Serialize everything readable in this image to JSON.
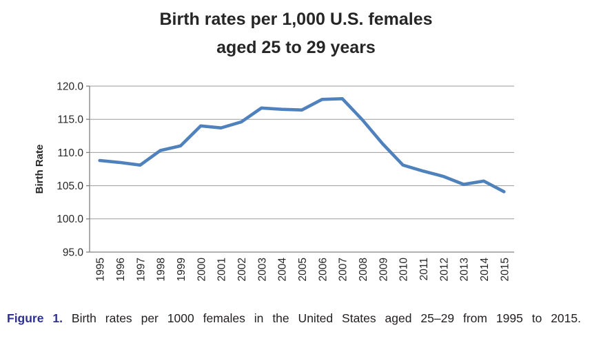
{
  "title": {
    "lines": [
      "Birth rates per 1,000 U.S. females",
      "aged 25 to 29 years"
    ]
  },
  "chart_data": {
    "type": "line",
    "title": "Birth rates per 1,000 U.S. females aged 25 to 29 years",
    "xlabel": "",
    "ylabel": "Birth Rate",
    "x": [
      "1995",
      "1996",
      "1997",
      "1998",
      "1999",
      "2000",
      "2001",
      "2002",
      "2003",
      "2004",
      "2005",
      "2006",
      "2007",
      "2008",
      "2009",
      "2010",
      "2011",
      "2012",
      "2013",
      "2014",
      "2015"
    ],
    "series": [
      {
        "name": "Birth rate per 1,000 females aged 25-29",
        "values": [
          108.8,
          108.5,
          108.1,
          110.3,
          111.0,
          114.0,
          113.7,
          114.6,
          116.7,
          116.5,
          116.4,
          118.0,
          118.1,
          114.9,
          111.3,
          108.1,
          107.2,
          106.4,
          105.2,
          105.7,
          104.1
        ]
      }
    ],
    "ylim": [
      95,
      120
    ],
    "ytick_labels": [
      "95.0",
      "100.0",
      "105.0",
      "110.0",
      "115.0",
      "120.0"
    ],
    "grid": true,
    "legend": "none",
    "colors": {
      "line": "#4F81BD",
      "gridline": "#9a9a9a",
      "axis": "#808080",
      "tick_label": "#262626",
      "axis_title": "#262626",
      "title": "#262626"
    }
  },
  "caption": {
    "label": "Figure 1.",
    "text": "Birth rates per 1000 females in the United States aged 25–29 from 1995 to 2015.",
    "label_color": "#2e3192",
    "text_color": "#231f20"
  }
}
